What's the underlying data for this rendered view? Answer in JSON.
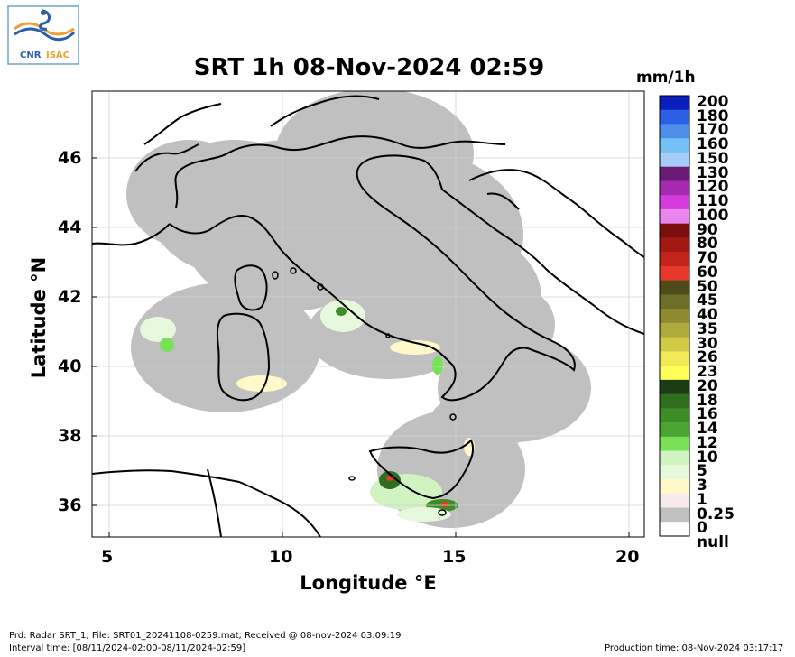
{
  "logo": {
    "text": "CNR ISAC",
    "text_cnr": "CNR",
    "text_isac": "ISAC"
  },
  "title": "SRT 1h 08-Nov-2024 02:59",
  "units": "mm/1h",
  "axes": {
    "xlabel": "Longitude °E",
    "ylabel": "Latitude °N",
    "xlim": [
      4.5,
      20.4
    ],
    "ylim": [
      35.0,
      47.8
    ],
    "xticks": [
      "5",
      "10",
      "15",
      "20"
    ],
    "yticks": [
      "36",
      "38",
      "40",
      "42",
      "44",
      "46"
    ],
    "grid": true
  },
  "colorbar": {
    "labels": [
      "200",
      "180",
      "170",
      "160",
      "150",
      "130",
      "120",
      "110",
      "100",
      "90",
      "80",
      "70",
      "60",
      "50",
      "45",
      "40",
      "35",
      "30",
      "26",
      "23",
      "20",
      "18",
      "16",
      "14",
      "12",
      "10",
      "5",
      "3",
      "1",
      "0.25",
      "0",
      "null"
    ],
    "colors": [
      "#0a1dbd",
      "#2c5fe6",
      "#4f8fec",
      "#74c1f6",
      "#a6cdf7",
      "#6a1b75",
      "#a52ab0",
      "#d63be0",
      "#ea87ef",
      "#7b0e0e",
      "#a21914",
      "#c2231b",
      "#e8372b",
      "#4d4b19",
      "#6f6e27",
      "#8f8b32",
      "#b0aa3c",
      "#d1ca45",
      "#f1ea54",
      "#ffff57",
      "#1e3c14",
      "#2e6e1e",
      "#3c8c28",
      "#4aa533",
      "#78e155",
      "#d1f3c1",
      "#e7f9dc",
      "#fff8c9",
      "#f8eaea",
      "#c0c0c0",
      "#ffffff"
    ]
  },
  "footer": {
    "line1": "Prd: Radar SRT_1; File: SRT01_20241108-0259.mat; Received @ 08-nov-2024 03:09:19",
    "line2": "Interval time: [08/11/2024-02:00-08/11/2024-02:59]",
    "production": "Production time: 08-Nov-2024 03:17:17"
  }
}
